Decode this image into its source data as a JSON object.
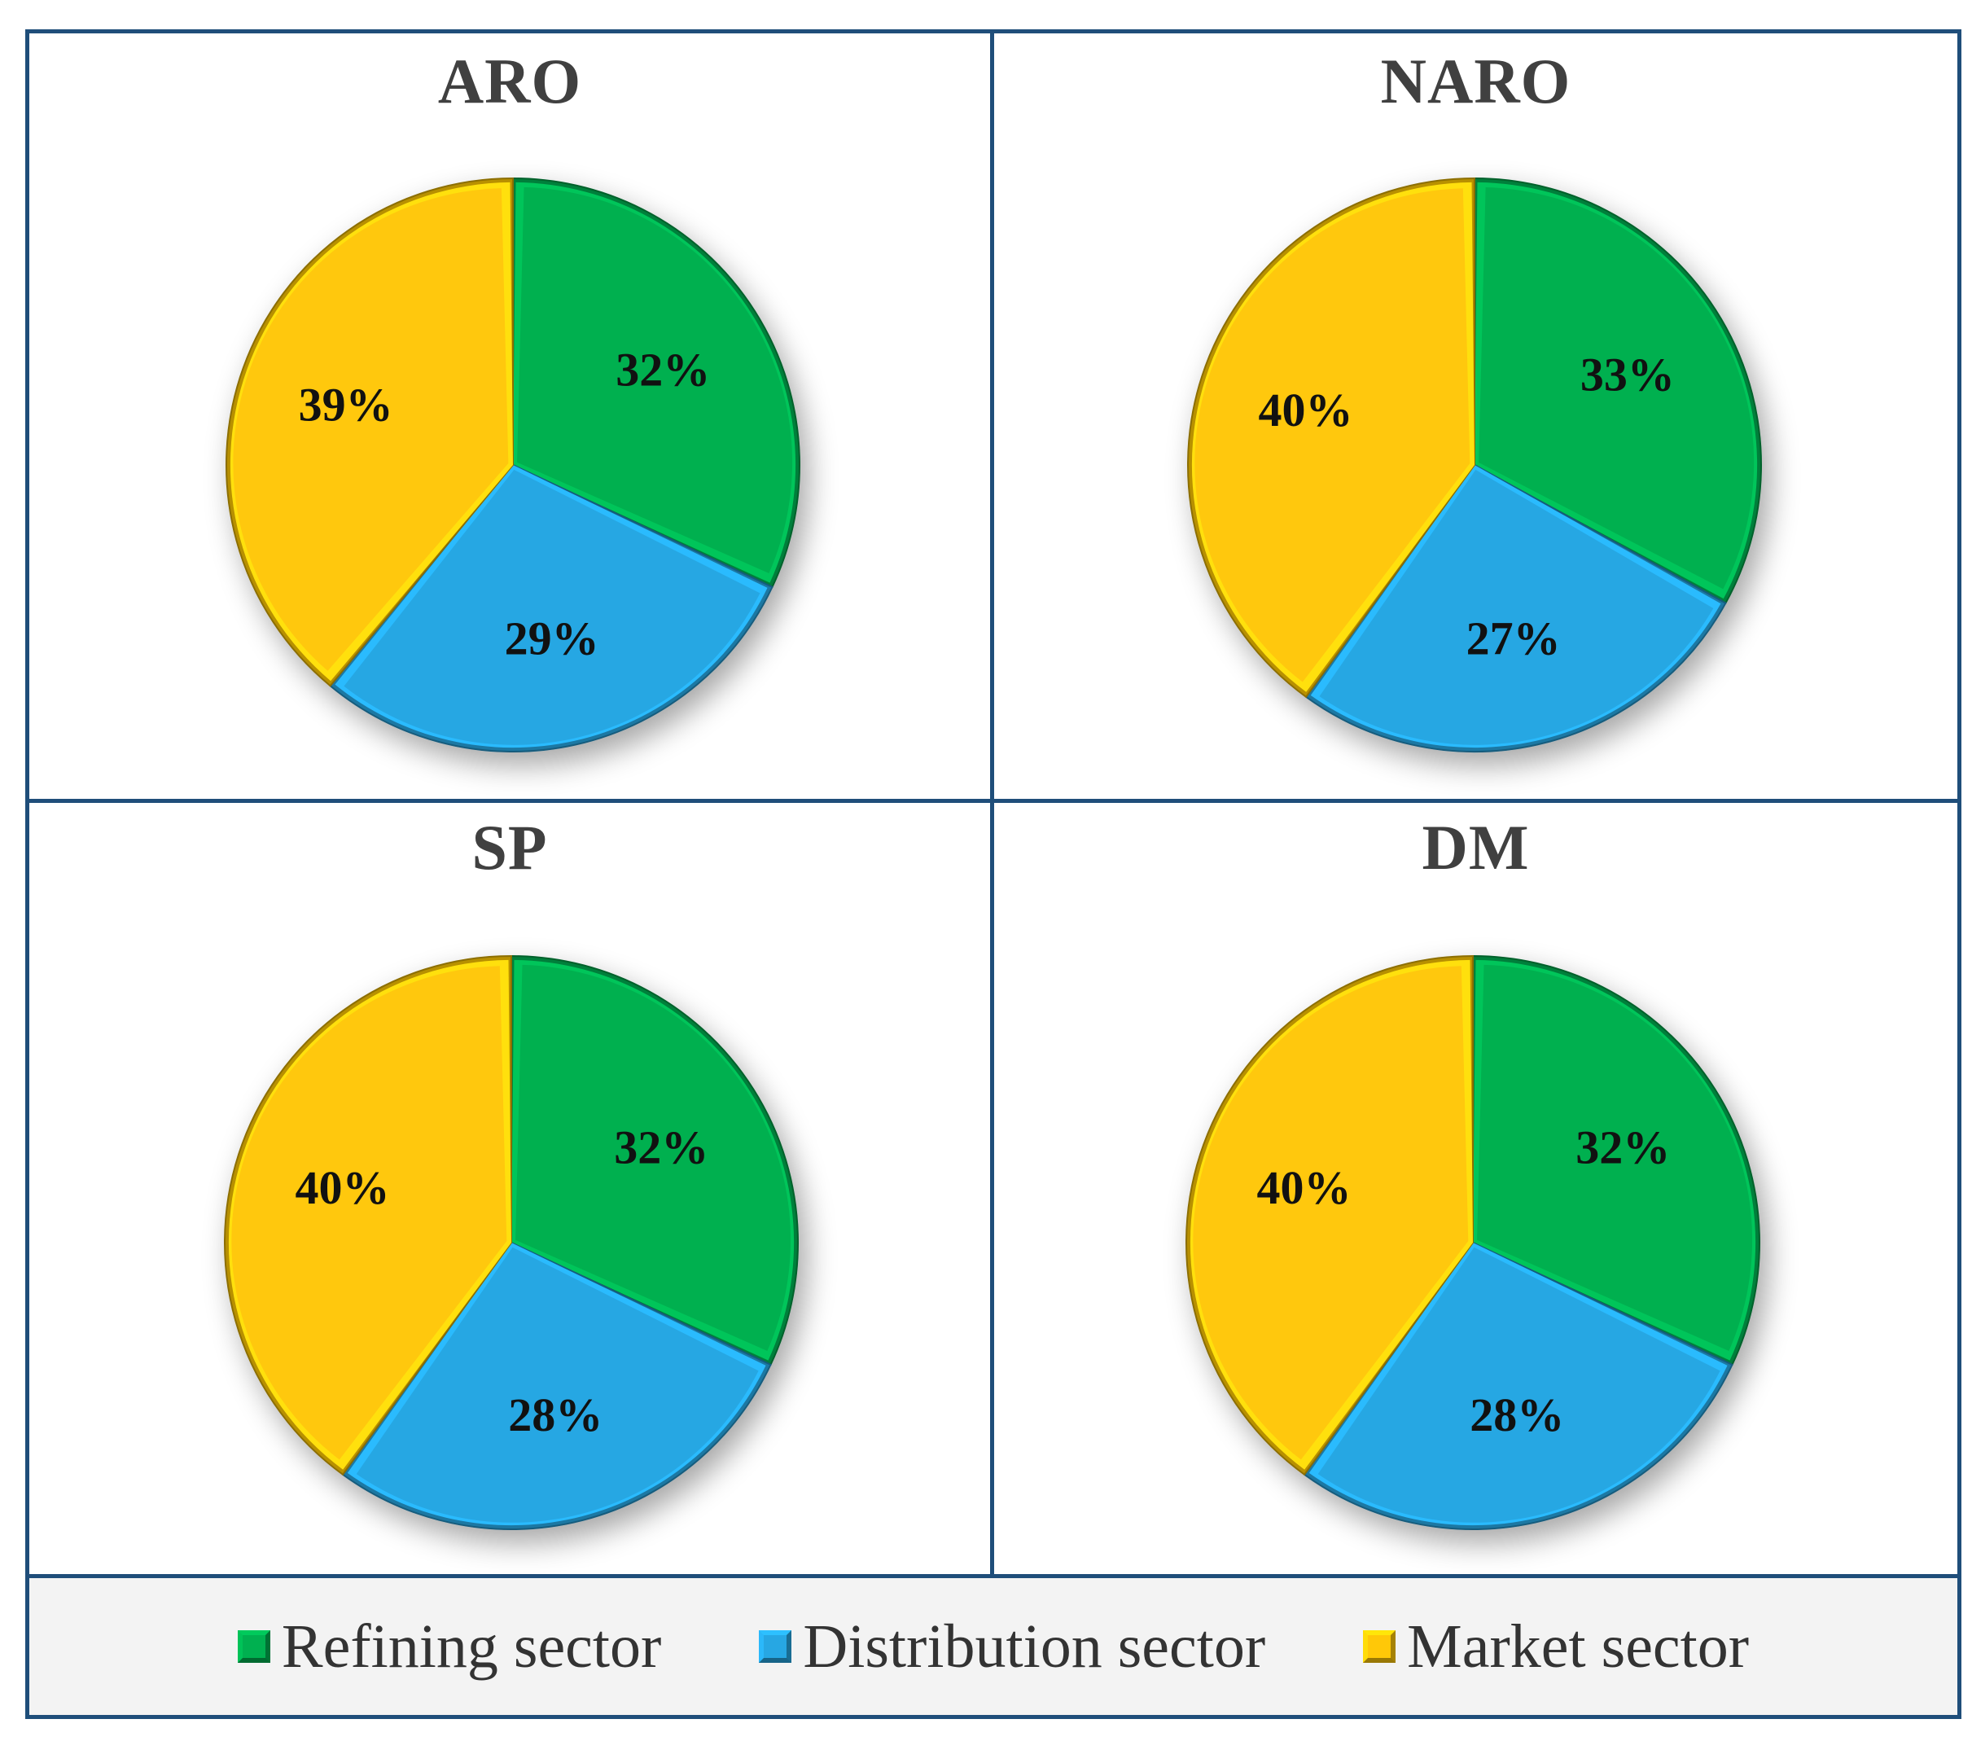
{
  "chart_data": [
    {
      "type": "pie",
      "title": "ARO",
      "categories": [
        "Refining sector",
        "Distribution sector",
        "Market sector"
      ],
      "values": [
        32,
        29,
        39
      ],
      "labels": [
        "32%",
        "29%",
        "39%"
      ]
    },
    {
      "type": "pie",
      "title": "NARO",
      "categories": [
        "Refining sector",
        "Distribution sector",
        "Market sector"
      ],
      "values": [
        33,
        27,
        40
      ],
      "labels": [
        "33%",
        "27%",
        "40%"
      ]
    },
    {
      "type": "pie",
      "title": "SP",
      "categories": [
        "Refining sector",
        "Distribution sector",
        "Market sector"
      ],
      "values": [
        32,
        28,
        40
      ],
      "labels": [
        "32%",
        "28%",
        "40%"
      ]
    },
    {
      "type": "pie",
      "title": "DM",
      "categories": [
        "Refining sector",
        "Distribution sector",
        "Market sector"
      ],
      "values": [
        32,
        28,
        40
      ],
      "labels": [
        "32%",
        "28%",
        "40%"
      ]
    }
  ],
  "legend": {
    "items": [
      {
        "label": "Refining sector",
        "color": "#00b050"
      },
      {
        "label": "Distribution sector",
        "color": "#27a7e3"
      },
      {
        "label": "Market sector",
        "color": "#ffc808"
      }
    ]
  },
  "colors": {
    "refining": "#00b050",
    "distribution": "#27a7e3",
    "market": "#ffc808",
    "frame": "#1f4e7a"
  }
}
